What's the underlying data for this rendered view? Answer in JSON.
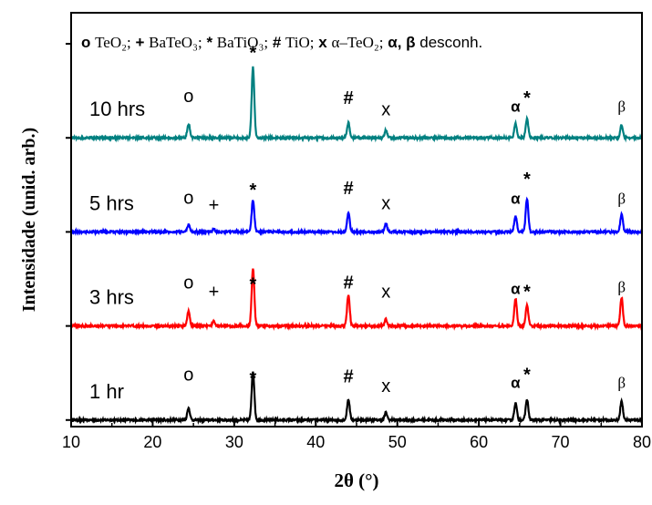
{
  "chart_data": {
    "type": "line",
    "title": "",
    "xlabel": "2θ (°)",
    "ylabel": "Intensidade (unid. arb.)",
    "xlim": [
      10,
      80
    ],
    "ylim": [
      0,
      4.4
    ],
    "x_ticks": [
      "10",
      "20",
      "30",
      "40",
      "50",
      "60",
      "70",
      "80"
    ],
    "grid": false,
    "legend": {
      "placement": "top",
      "items": [
        {
          "symbol": "o",
          "text": "TeO₂;"
        },
        {
          "symbol": "+",
          "text": "BaTeO₃;"
        },
        {
          "symbol": "*",
          "text": "BaTiO₃;"
        },
        {
          "symbol": "#",
          "text": "TiO;"
        },
        {
          "symbol": "x",
          "text": "α–TeO₂;"
        },
        {
          "symbol": "α, β",
          "text": "desconh."
        }
      ]
    },
    "series": [
      {
        "name": "1 hr",
        "color": "#000000",
        "baseline": 0,
        "peaks": [
          {
            "x": 24.4,
            "h": 0.13,
            "mark": "o",
            "mark_y": 0.42
          },
          {
            "x": 32.3,
            "h": 0.52,
            "mark": "*",
            "mark_y": 0.38
          },
          {
            "x": 44.0,
            "h": 0.22,
            "mark": "#",
            "mark_y": 0.4
          },
          {
            "x": 48.6,
            "h": 0.08,
            "mark": "x",
            "mark_y": 0.3
          },
          {
            "x": 64.5,
            "h": 0.18,
            "mark": "α",
            "mark_y": 0.34
          },
          {
            "x": 65.9,
            "h": 0.22,
            "mark": "*",
            "mark_y": 0.42
          },
          {
            "x": 77.5,
            "h": 0.2,
            "mark": "β",
            "mark_y": 0.34
          }
        ]
      },
      {
        "name": "3 hrs",
        "color": "#ff0000",
        "baseline": 1,
        "peaks": [
          {
            "x": 24.4,
            "h": 0.16,
            "mark": "o",
            "mark_y": 0.4
          },
          {
            "x": 27.5,
            "h": 0.05,
            "mark": "+",
            "mark_y": 0.3
          },
          {
            "x": 32.3,
            "h": 0.62,
            "mark": "*",
            "mark_y": 0.38
          },
          {
            "x": 44.0,
            "h": 0.33,
            "mark": "#",
            "mark_y": 0.4
          },
          {
            "x": 48.6,
            "h": 0.07,
            "mark": "x",
            "mark_y": 0.3
          },
          {
            "x": 64.5,
            "h": 0.29,
            "mark": "α",
            "mark_y": 0.34
          },
          {
            "x": 65.9,
            "h": 0.22,
            "mark": "*",
            "mark_y": 0.3
          },
          {
            "x": 77.5,
            "h": 0.3,
            "mark": "β",
            "mark_y": 0.36
          }
        ]
      },
      {
        "name": "5 hrs",
        "color": "#0000ff",
        "baseline": 2,
        "peaks": [
          {
            "x": 24.4,
            "h": 0.08,
            "mark": "o",
            "mark_y": 0.3
          },
          {
            "x": 27.5,
            "h": 0.03,
            "mark": "+",
            "mark_y": 0.22
          },
          {
            "x": 32.3,
            "h": 0.34,
            "mark": "*",
            "mark_y": 0.38
          },
          {
            "x": 44.0,
            "h": 0.2,
            "mark": "#",
            "mark_y": 0.4
          },
          {
            "x": 48.6,
            "h": 0.09,
            "mark": "x",
            "mark_y": 0.24
          },
          {
            "x": 64.5,
            "h": 0.17,
            "mark": "α",
            "mark_y": 0.3
          },
          {
            "x": 65.9,
            "h": 0.35,
            "mark": "*",
            "mark_y": 0.5
          },
          {
            "x": 77.5,
            "h": 0.19,
            "mark": "β",
            "mark_y": 0.3
          }
        ]
      },
      {
        "name": "10 hrs",
        "color": "#008080",
        "baseline": 3,
        "peaks": [
          {
            "x": 24.4,
            "h": 0.15,
            "mark": "o",
            "mark_y": 0.38
          },
          {
            "x": 32.3,
            "h": 0.75,
            "mark": "*",
            "mark_y": 0.84
          },
          {
            "x": 44.0,
            "h": 0.16,
            "mark": "#",
            "mark_y": 0.36
          },
          {
            "x": 48.6,
            "h": 0.08,
            "mark": "x",
            "mark_y": 0.24
          },
          {
            "x": 64.5,
            "h": 0.15,
            "mark": "α",
            "mark_y": 0.28
          },
          {
            "x": 65.9,
            "h": 0.2,
            "mark": "*",
            "mark_y": 0.36
          },
          {
            "x": 77.5,
            "h": 0.14,
            "mark": "β",
            "mark_y": 0.28
          }
        ]
      }
    ]
  }
}
